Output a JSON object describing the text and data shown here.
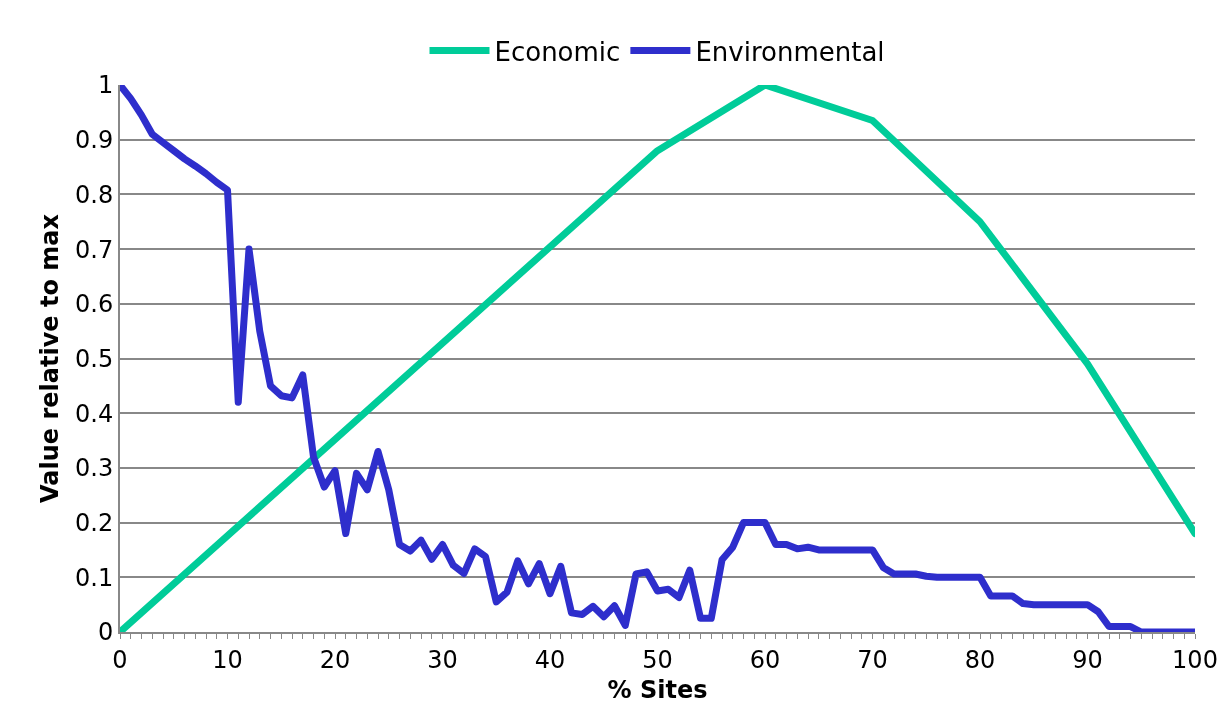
{
  "chart_data": {
    "type": "line",
    "xlabel": "% Sites",
    "ylabel": "Value relative to max",
    "series": [
      {
        "name": "Economic",
        "color": "#00cc99",
        "x": [
          0,
          50,
          60,
          70,
          80,
          90,
          100
        ],
        "values": [
          0,
          0.88,
          1.0,
          0.935,
          0.75,
          0.49,
          0.18
        ]
      },
      {
        "name": "Environmental",
        "color": "#2e2ecc",
        "x": [
          0,
          1,
          2,
          3,
          4,
          5,
          6,
          7,
          8,
          9,
          10,
          11,
          12,
          13,
          14,
          15,
          16,
          17,
          18,
          19,
          20,
          21,
          22,
          23,
          24,
          25,
          26,
          27,
          28,
          29,
          30,
          31,
          32,
          33,
          34,
          35,
          36,
          37,
          38,
          39,
          40,
          41,
          42,
          43,
          44,
          45,
          46,
          47,
          48,
          49,
          50,
          51,
          52,
          53,
          54,
          55,
          56,
          57,
          58,
          59,
          60,
          61,
          62,
          63,
          64,
          65,
          66,
          67,
          68,
          69,
          70,
          71,
          72,
          73,
          74,
          75,
          76,
          77,
          78,
          79,
          80,
          81,
          82,
          83,
          84,
          85,
          86,
          87,
          88,
          89,
          90,
          91,
          92,
          93,
          94,
          95,
          96,
          97,
          98,
          99,
          100
        ],
        "values": [
          1.0,
          0.975,
          0.945,
          0.91,
          0.895,
          0.88,
          0.865,
          0.852,
          0.838,
          0.822,
          0.808,
          0.42,
          0.7,
          0.55,
          0.45,
          0.432,
          0.428,
          0.47,
          0.32,
          0.265,
          0.295,
          0.18,
          0.29,
          0.26,
          0.33,
          0.26,
          0.16,
          0.148,
          0.168,
          0.133,
          0.16,
          0.122,
          0.107,
          0.152,
          0.138,
          0.055,
          0.073,
          0.13,
          0.088,
          0.125,
          0.07,
          0.12,
          0.035,
          0.032,
          0.047,
          0.028,
          0.048,
          0.012,
          0.106,
          0.11,
          0.075,
          0.078,
          0.063,
          0.113,
          0.025,
          0.025,
          0.132,
          0.155,
          0.2,
          0.2,
          0.2,
          0.16,
          0.16,
          0.152,
          0.155,
          0.15,
          0.15,
          0.15,
          0.15,
          0.15,
          0.15,
          0.118,
          0.106,
          0.106,
          0.106,
          0.102,
          0.1,
          0.1,
          0.1,
          0.1,
          0.1,
          0.066,
          0.066,
          0.066,
          0.052,
          0.05,
          0.05,
          0.05,
          0.05,
          0.05,
          0.05,
          0.037,
          0.01,
          0.01,
          0.01,
          0,
          0,
          0,
          0,
          0,
          0
        ]
      }
    ],
    "xlim": [
      0,
      100
    ],
    "xticks": [
      0,
      {
        "value": 1,
        "label": null
      },
      {
        "value": 2,
        "label": null
      },
      {
        "value": 3,
        "label": null
      },
      {
        "value": 4,
        "label": null
      },
      {
        "value": 5,
        "label": null
      },
      {
        "value": 6,
        "label": null
      },
      {
        "value": 7,
        "label": null
      },
      {
        "value": 8,
        "label": null
      },
      {
        "value": 9,
        "label": null
      },
      10,
      {
        "value": 11,
        "label": null
      },
      {
        "value": 12,
        "label": null
      },
      {
        "value": 13,
        "label": null
      },
      {
        "value": 14,
        "label": null
      },
      {
        "value": 15,
        "label": null
      },
      {
        "value": 16,
        "label": null
      },
      {
        "value": 17,
        "label": null
      },
      {
        "value": 18,
        "label": null
      },
      {
        "value": 19,
        "label": null
      },
      20,
      {
        "value": 21,
        "label": null
      },
      {
        "value": 22,
        "label": null
      },
      {
        "value": 23,
        "label": null
      },
      {
        "value": 24,
        "label": null
      },
      {
        "value": 25,
        "label": null
      },
      {
        "value": 26,
        "label": null
      },
      {
        "value": 27,
        "label": null
      },
      {
        "value": 28,
        "label": null
      },
      {
        "value": 29,
        "label": null
      },
      30,
      {
        "value": 31,
        "label": null
      },
      {
        "value": 32,
        "label": null
      },
      {
        "value": 33,
        "label": null
      },
      {
        "value": 34,
        "label": null
      },
      {
        "value": 35,
        "label": null
      },
      {
        "value": 36,
        "label": null
      },
      {
        "value": 37,
        "label": null
      },
      {
        "value": 38,
        "label": null
      },
      {
        "value": 39,
        "label": null
      },
      40,
      {
        "value": 41,
        "label": null
      },
      {
        "value": 42,
        "label": null
      },
      {
        "value": 43,
        "label": null
      },
      {
        "value": 44,
        "label": null
      },
      {
        "value": 45,
        "label": null
      },
      {
        "value": 46,
        "label": null
      },
      {
        "value": 47,
        "label": null
      },
      {
        "value": 48,
        "label": null
      },
      {
        "value": 49,
        "label": null
      },
      50,
      {
        "value": 51,
        "label": null
      },
      {
        "value": 52,
        "label": null
      },
      {
        "value": 53,
        "label": null
      },
      {
        "value": 54,
        "label": null
      },
      {
        "value": 55,
        "label": null
      },
      {
        "value": 56,
        "label": null
      },
      {
        "value": 57,
        "label": null
      },
      {
        "value": 58,
        "label": null
      },
      {
        "value": 59,
        "label": null
      },
      60,
      {
        "value": 61,
        "label": null
      },
      {
        "value": 62,
        "label": null
      },
      {
        "value": 63,
        "label": null
      },
      {
        "value": 64,
        "label": null
      },
      {
        "value": 65,
        "label": null
      },
      {
        "value": 66,
        "label": null
      },
      {
        "value": 67,
        "label": null
      },
      {
        "value": 68,
        "label": null
      },
      {
        "value": 69,
        "label": null
      },
      70,
      {
        "value": 71,
        "label": null
      },
      {
        "value": 72,
        "label": null
      },
      {
        "value": 73,
        "label": null
      },
      {
        "value": 74,
        "label": null
      },
      {
        "value": 75,
        "label": null
      },
      {
        "value": 76,
        "label": null
      },
      {
        "value": 77,
        "label": null
      },
      {
        "value": 78,
        "label": null
      },
      {
        "value": 79,
        "label": null
      },
      80,
      {
        "value": 81,
        "label": null
      },
      {
        "value": 82,
        "label": null
      },
      {
        "value": 83,
        "label": null
      },
      {
        "value": 84,
        "label": null
      },
      {
        "value": 85,
        "label": null
      },
      {
        "value": 86,
        "label": null
      },
      {
        "value": 87,
        "label": null
      },
      {
        "value": 88,
        "label": null
      },
      {
        "value": 89,
        "label": null
      },
      90,
      {
        "value": 91,
        "label": null
      },
      {
        "value": 92,
        "label": null
      },
      {
        "value": 93,
        "label": null
      },
      {
        "value": 94,
        "label": null
      },
      {
        "value": 95,
        "label": null
      },
      {
        "value": 96,
        "label": null
      },
      {
        "value": 97,
        "label": null
      },
      {
        "value": 98,
        "label": null
      },
      {
        "value": 99,
        "label": null
      },
      100
    ],
    "ylim": [
      0,
      1
    ],
    "yticks": [
      0,
      0.1,
      0.2,
      0.3,
      0.4,
      0.5,
      0.6,
      0.7,
      0.8,
      0.9,
      1
    ],
    "grid": "y",
    "legend": "top",
    "marker": "none",
    "line_style": "solid"
  }
}
